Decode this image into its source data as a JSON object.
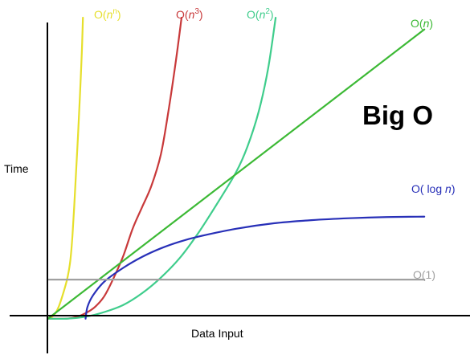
{
  "chart_data": {
    "type": "line",
    "title": "Big O",
    "xlabel": "Data Input",
    "ylabel": "Time",
    "grid": false,
    "legend": "none; each curve is labeled at its top or right end",
    "series": [
      {
        "name": "O(n^n)",
        "label": {
          "base": "O(",
          "var": "n",
          "sup": "n",
          "close": ")"
        },
        "color": "#e6df2c",
        "points": [
          [
            0,
            0
          ],
          [
            0.1,
            0.04
          ],
          [
            0.2,
            0.14
          ],
          [
            0.3,
            0.34
          ],
          [
            0.4,
            0.63
          ],
          [
            0.5,
            0.97
          ],
          [
            0.55,
            1.2
          ],
          [
            0.6,
            1.53
          ],
          [
            0.65,
            2.1
          ],
          [
            0.7,
            2.9
          ],
          [
            0.75,
            3.8
          ],
          [
            0.8,
            4.7
          ],
          [
            0.85,
            5.7
          ],
          [
            0.9,
            6.8
          ],
          [
            0.93,
            7.7
          ]
        ]
      },
      {
        "name": "O(n^3)",
        "label": {
          "base": "O(",
          "var": "n",
          "sup": "3",
          "close": ")"
        },
        "color": "#c8393a",
        "points": [
          [
            0,
            0
          ],
          [
            0.5,
            0
          ],
          [
            0.75,
            0.04
          ],
          [
            1.0,
            0.14
          ],
          [
            1.25,
            0.3
          ],
          [
            1.5,
            0.58
          ],
          [
            1.75,
            1.05
          ],
          [
            2.0,
            1.6
          ],
          [
            2.25,
            2.3
          ],
          [
            2.5,
            2.85
          ],
          [
            2.75,
            3.4
          ],
          [
            3.0,
            4.2
          ],
          [
            3.2,
            5.3
          ],
          [
            3.4,
            6.6
          ],
          [
            3.55,
            7.7
          ]
        ]
      },
      {
        "name": "O(n^2)",
        "label": {
          "base": "O(",
          "var": "n",
          "sup": "2",
          "close": ")"
        },
        "color": "#3fcd8c",
        "points": [
          [
            0,
            0
          ],
          [
            0.5,
            0
          ],
          [
            1,
            0.05
          ],
          [
            1.5,
            0.17
          ],
          [
            2,
            0.35
          ],
          [
            2.5,
            0.65
          ],
          [
            3,
            1.05
          ],
          [
            3.5,
            1.55
          ],
          [
            4,
            2.2
          ],
          [
            4.5,
            2.95
          ],
          [
            5,
            3.75
          ],
          [
            5.3,
            4.4
          ],
          [
            5.6,
            5.3
          ],
          [
            5.85,
            6.4
          ],
          [
            6.05,
            7.7
          ]
        ]
      },
      {
        "name": "O(n)",
        "label": {
          "base": "O(",
          "var": "n",
          "sup": "",
          "close": ")"
        },
        "color": "#3cb935",
        "points": [
          [
            0,
            0
          ],
          [
            10,
            7.4
          ]
        ]
      },
      {
        "name": "O(log n)",
        "label": {
          "base": "O( log ",
          "var": "n",
          "sup": "",
          "close": ")"
        },
        "color": "#2830b8",
        "points": [
          [
            1,
            0
          ],
          [
            1.05,
            0.3
          ],
          [
            1.2,
            0.6
          ],
          [
            1.5,
            0.95
          ],
          [
            2,
            1.3
          ],
          [
            2.5,
            1.58
          ],
          [
            3,
            1.8
          ],
          [
            3.5,
            1.97
          ],
          [
            4,
            2.1
          ],
          [
            5,
            2.3
          ],
          [
            6,
            2.44
          ],
          [
            7,
            2.52
          ],
          [
            8,
            2.57
          ],
          [
            9,
            2.6
          ],
          [
            10,
            2.61
          ]
        ]
      },
      {
        "name": "O(1)",
        "label": {
          "base": "O(1)",
          "var": "",
          "sup": "",
          "close": ""
        },
        "color": "#a0a0a0",
        "points": [
          [
            0,
            1
          ],
          [
            10,
            1
          ]
        ]
      }
    ],
    "xlim": [
      -1.06,
      11.0
    ],
    "ylim": [
      -0.58,
      8.05
    ],
    "axis_color": "#000000"
  }
}
